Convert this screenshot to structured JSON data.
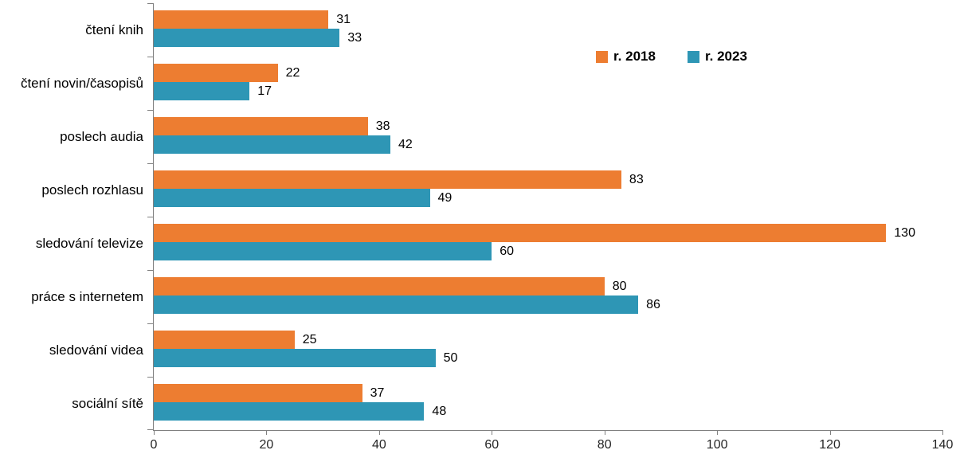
{
  "chart_data": {
    "type": "bar",
    "orientation": "horizontal",
    "categories": [
      "čtení knih",
      "čtení novin/časopisů",
      "poslech audia",
      "poslech rozhlasu",
      "sledování televize",
      "práce s internetem",
      "sledování videa",
      "sociální sítě"
    ],
    "series": [
      {
        "name": "r. 2018",
        "color": "#ED7D31",
        "values": [
          31,
          22,
          38,
          83,
          130,
          80,
          25,
          37
        ]
      },
      {
        "name": "r. 2023",
        "color": "#2E96B5",
        "values": [
          33,
          17,
          42,
          49,
          60,
          86,
          50,
          48
        ]
      }
    ],
    "xlim": [
      0,
      140
    ],
    "x_ticks": [
      0,
      20,
      40,
      60,
      80,
      100,
      120,
      140
    ],
    "grid": false,
    "value_labels": true,
    "legend_position": "top-right",
    "axis_color": "#808080",
    "text_color": "#000000"
  }
}
